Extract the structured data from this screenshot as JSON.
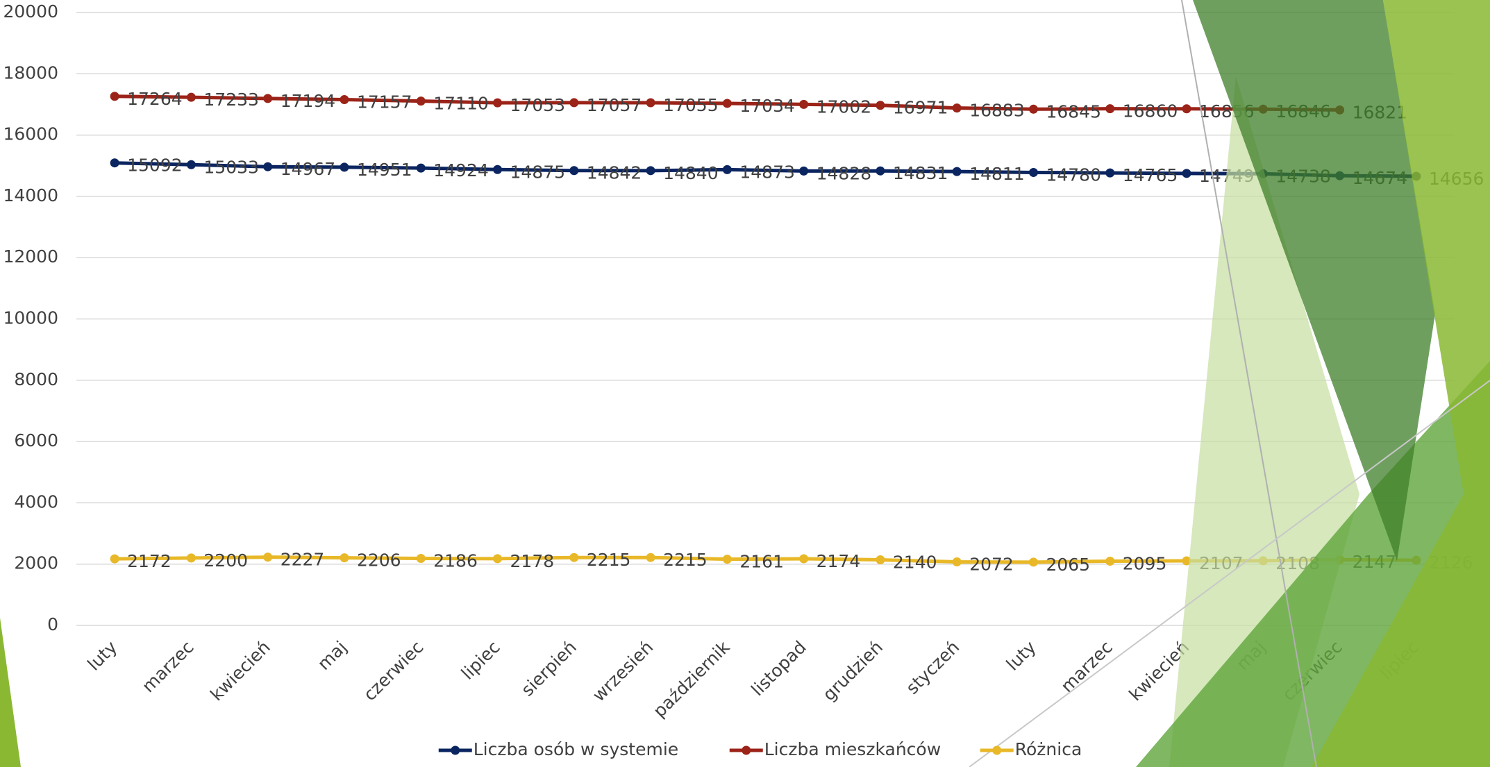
{
  "chart_data": {
    "type": "line",
    "categories": [
      "luty",
      "marzec",
      "kwiecień",
      "maj",
      "czerwiec",
      "lipiec",
      "sierpień",
      "wrzesień",
      "październik",
      "listopad",
      "grudzień",
      "styczeń",
      "luty",
      "marzec",
      "kwiecień",
      "maj",
      "czerwiec",
      "lipiec"
    ],
    "series": [
      {
        "name": "Liczba osób w systemie",
        "color": "#0b2560",
        "values": [
          15092,
          15033,
          14967,
          14951,
          14924,
          14875,
          14842,
          14840,
          14873,
          14828,
          14831,
          14811,
          14780,
          14765,
          14749,
          14738,
          14674,
          14656
        ]
      },
      {
        "name": "Liczba mieszkańców",
        "color": "#9b2318",
        "values": [
          17264,
          17233,
          17194,
          17157,
          17110,
          17053,
          17057,
          17055,
          17034,
          17002,
          16971,
          16883,
          16845,
          16860,
          16856,
          16846,
          16821,
          null
        ]
      },
      {
        "name": "Różnica",
        "color": "#e8b828",
        "values": [
          2172,
          2200,
          2227,
          2206,
          2186,
          2178,
          2215,
          2215,
          2161,
          2174,
          2140,
          2072,
          2065,
          2095,
          2107,
          2108,
          2147,
          2126
        ]
      }
    ],
    "ylim": [
      0,
      20000
    ],
    "yticks": [
      0,
      2000,
      4000,
      6000,
      8000,
      10000,
      12000,
      14000,
      16000,
      18000,
      20000
    ],
    "grid": true,
    "legend": "bottom"
  }
}
